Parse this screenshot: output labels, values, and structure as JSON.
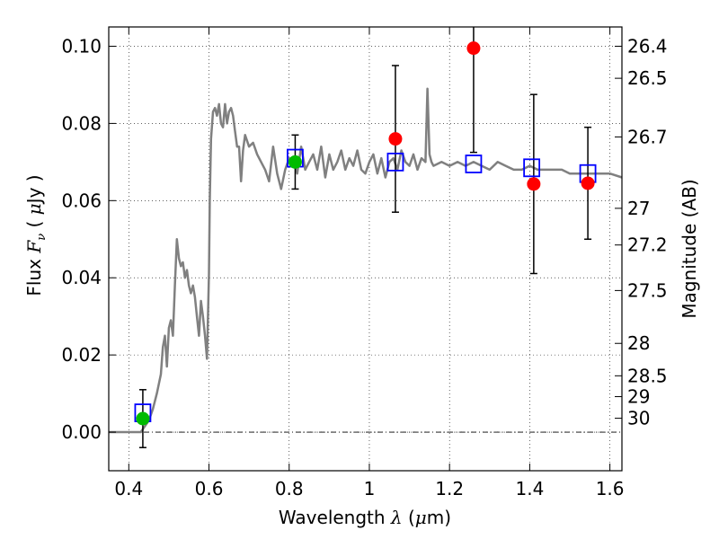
{
  "chart_data": {
    "type": "scatter",
    "xlabel_parts": [
      "Wavelength  ",
      "λ",
      " (",
      "μ",
      "m)"
    ],
    "ylabel_parts": [
      "Flux  ",
      "F",
      "ν",
      "  (  ",
      "μ",
      "Jy )"
    ],
    "ylabel_right": "Magnitude (AB)",
    "xlim": [
      0.35,
      1.63
    ],
    "ylim": [
      -0.01,
      0.105
    ],
    "grid": true,
    "grid_style": "dotted",
    "x_ticks": [
      0.4,
      0.6,
      0.8,
      1.0,
      1.2,
      1.4,
      1.6
    ],
    "x_tick_labels": [
      "0.4",
      "0.6",
      "0.8",
      "1",
      "1.2",
      "1.4",
      "1.6"
    ],
    "y_ticks": [
      0.0,
      0.02,
      0.04,
      0.06,
      0.08,
      0.1
    ],
    "y_tick_labels": [
      "0.00",
      "0.02",
      "0.04",
      "0.06",
      "0.08",
      "0.10"
    ],
    "right_ticks": [
      {
        "label": "26.4",
        "flux": 0.1
      },
      {
        "label": "26.5",
        "flux": 0.0917
      },
      {
        "label": "26.7",
        "flux": 0.0765
      },
      {
        "label": "27",
        "flux": 0.058
      },
      {
        "label": "27.2",
        "flux": 0.0485
      },
      {
        "label": "27.5",
        "flux": 0.0367
      },
      {
        "label": "28",
        "flux": 0.023
      },
      {
        "label": "28.5",
        "flux": 0.0146
      },
      {
        "label": "29",
        "flux": 0.0092
      },
      {
        "label": "30",
        "flux": 0.0036
      }
    ],
    "model_spectrum": {
      "color": "#808080",
      "x": [
        0.35,
        0.4,
        0.42,
        0.43,
        0.44,
        0.45,
        0.46,
        0.47,
        0.48,
        0.485,
        0.49,
        0.495,
        0.5,
        0.505,
        0.51,
        0.515,
        0.52,
        0.525,
        0.53,
        0.535,
        0.54,
        0.545,
        0.55,
        0.555,
        0.56,
        0.565,
        0.57,
        0.575,
        0.58,
        0.585,
        0.59,
        0.595,
        0.6,
        0.602,
        0.605,
        0.61,
        0.615,
        0.62,
        0.625,
        0.63,
        0.635,
        0.64,
        0.645,
        0.65,
        0.655,
        0.66,
        0.665,
        0.67,
        0.675,
        0.68,
        0.685,
        0.69,
        0.7,
        0.71,
        0.72,
        0.73,
        0.74,
        0.75,
        0.76,
        0.77,
        0.78,
        0.79,
        0.8,
        0.81,
        0.82,
        0.83,
        0.84,
        0.85,
        0.86,
        0.87,
        0.88,
        0.89,
        0.9,
        0.91,
        0.92,
        0.93,
        0.94,
        0.95,
        0.96,
        0.97,
        0.98,
        0.99,
        1.0,
        1.01,
        1.02,
        1.03,
        1.04,
        1.05,
        1.06,
        1.07,
        1.08,
        1.09,
        1.1,
        1.11,
        1.12,
        1.13,
        1.14,
        1.145,
        1.15,
        1.155,
        1.16,
        1.18,
        1.2,
        1.22,
        1.24,
        1.26,
        1.28,
        1.3,
        1.32,
        1.34,
        1.36,
        1.38,
        1.4,
        1.42,
        1.44,
        1.46,
        1.48,
        1.5,
        1.52,
        1.54,
        1.56,
        1.58,
        1.6,
        1.63
      ],
      "y": [
        0.0,
        0.0,
        0.0,
        0.0,
        0.0015,
        0.003,
        0.006,
        0.01,
        0.015,
        0.022,
        0.025,
        0.017,
        0.027,
        0.029,
        0.025,
        0.038,
        0.05,
        0.045,
        0.043,
        0.044,
        0.04,
        0.042,
        0.038,
        0.036,
        0.038,
        0.035,
        0.03,
        0.025,
        0.034,
        0.03,
        0.025,
        0.019,
        0.041,
        0.06,
        0.076,
        0.083,
        0.084,
        0.082,
        0.085,
        0.08,
        0.079,
        0.085,
        0.08,
        0.083,
        0.084,
        0.082,
        0.078,
        0.074,
        0.074,
        0.065,
        0.073,
        0.077,
        0.074,
        0.075,
        0.072,
        0.07,
        0.068,
        0.065,
        0.074,
        0.067,
        0.063,
        0.068,
        0.071,
        0.07,
        0.067,
        0.074,
        0.068,
        0.07,
        0.072,
        0.068,
        0.074,
        0.066,
        0.072,
        0.068,
        0.07,
        0.073,
        0.068,
        0.071,
        0.069,
        0.073,
        0.068,
        0.067,
        0.07,
        0.072,
        0.067,
        0.071,
        0.066,
        0.07,
        0.071,
        0.068,
        0.073,
        0.07,
        0.069,
        0.072,
        0.068,
        0.071,
        0.07,
        0.089,
        0.072,
        0.07,
        0.069,
        0.07,
        0.069,
        0.07,
        0.069,
        0.07,
        0.069,
        0.068,
        0.07,
        0.069,
        0.068,
        0.068,
        0.069,
        0.068,
        0.068,
        0.068,
        0.068,
        0.067,
        0.067,
        0.067,
        0.067,
        0.067,
        0.067,
        0.066
      ]
    },
    "observed_points": [
      {
        "x": 0.435,
        "y": 0.0035,
        "yerr": 0.0075,
        "color": "#00bb00"
      },
      {
        "x": 0.815,
        "y": 0.07,
        "yerr": 0.007,
        "color": "#00bb00"
      },
      {
        "x": 1.065,
        "y": 0.076,
        "yerr": 0.019,
        "color": "#ff0000"
      },
      {
        "x": 1.26,
        "y": 0.0995,
        "yerr": 0.027,
        "color": "#ff0000"
      },
      {
        "x": 1.41,
        "y": 0.0643,
        "yerr": 0.0232,
        "color": "#ff0000"
      },
      {
        "x": 1.545,
        "y": 0.0645,
        "yerr": 0.0145,
        "color": "#ff0000"
      }
    ],
    "model_photometry": {
      "color": "#0000ff",
      "x": [
        0.435,
        0.815,
        1.065,
        1.26,
        1.405,
        1.545
      ],
      "y": [
        0.005,
        0.071,
        0.07,
        0.0695,
        0.0685,
        0.067
      ]
    }
  }
}
